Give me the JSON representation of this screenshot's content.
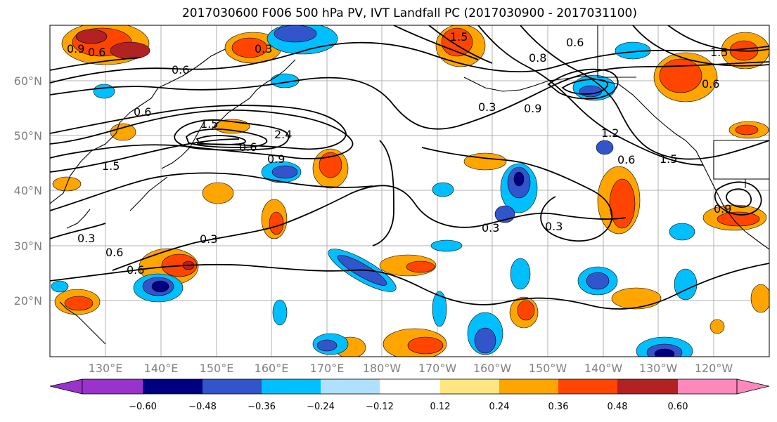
{
  "title": "2017030600 F006 500 hPa PV, IVT Landfall PC (2017030900 - 2017031100)",
  "lat_labels": [
    "60°N",
    "50°N",
    "40°N",
    "30°N",
    "20°N"
  ],
  "lon_labels": [
    "130°E",
    "140°E",
    "150°E",
    "160°E",
    "170°E",
    "180°W",
    "170°W",
    "160°W",
    "150°W",
    "140°W",
    "130°W",
    "120°W"
  ],
  "contour_labels": [
    "0.9",
    "0.6",
    "0.3",
    "0.6",
    "1.5",
    "0.6",
    "0.8",
    "0.6",
    "1.5",
    "0.6",
    "1.5",
    "2.4",
    "0.6",
    "0.9",
    "1.5",
    "0.3",
    "1.2",
    "0.6",
    "1.5",
    "0.9",
    "0.3",
    "0.3",
    "0.3",
    "0.6",
    "0.3",
    "0.6",
    "0.9"
  ],
  "colorbar": {
    "ticks": [
      "−0.60",
      "−0.48",
      "−0.36",
      "−0.24",
      "−0.12",
      "0.12",
      "0.24",
      "0.36",
      "0.48",
      "0.60"
    ],
    "colors": [
      "#9933cc",
      "#000080",
      "#3355cc",
      "#00bfff",
      "#b0e0ff",
      "#ffffff",
      "#ffe680",
      "#ffa500",
      "#ff4500",
      "#b22222",
      "#ff88bb"
    ]
  },
  "colors": {
    "land_outline": "#000000",
    "grid": "#b0b0b0",
    "pv_contour": "#000000"
  }
}
